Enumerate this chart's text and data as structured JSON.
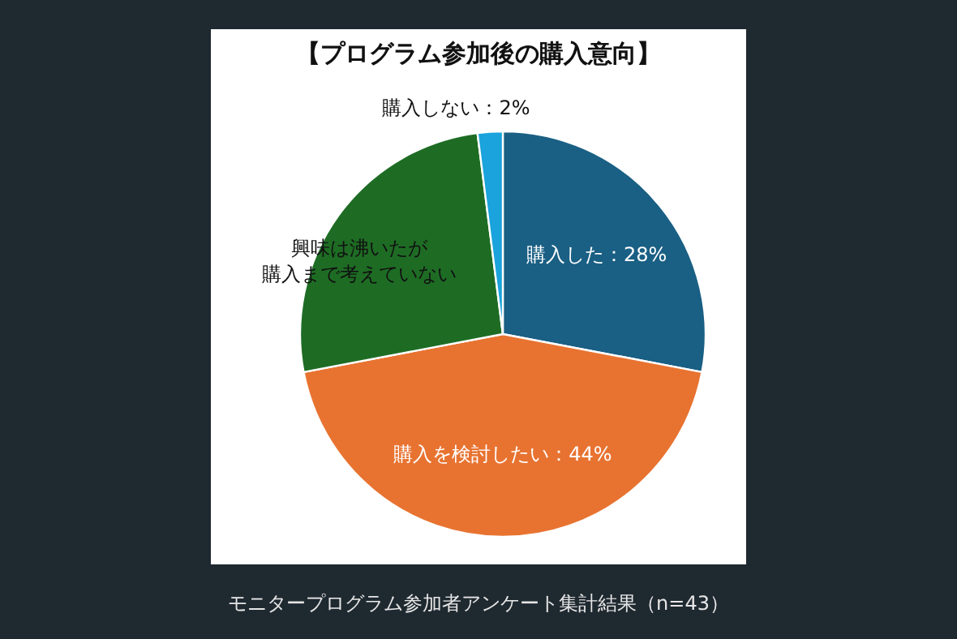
{
  "chart_data": {
    "type": "pie",
    "title": "【プログラム参加後の購入意向】",
    "categories": [
      "購入した",
      "購入を検討したい",
      "興味は沸いたが購入まで考えていない",
      "購入しない"
    ],
    "values": [
      28,
      44,
      26,
      2
    ],
    "colors": [
      "#1a5f84",
      "#e87331",
      "#1e6c24",
      "#1aa3dc"
    ],
    "value_labels": [
      "：28%",
      "：44%",
      null,
      "：2%"
    ],
    "annotations": [
      "モニタープログラム参加者アンケート集計結果（n=43）"
    ]
  }
}
